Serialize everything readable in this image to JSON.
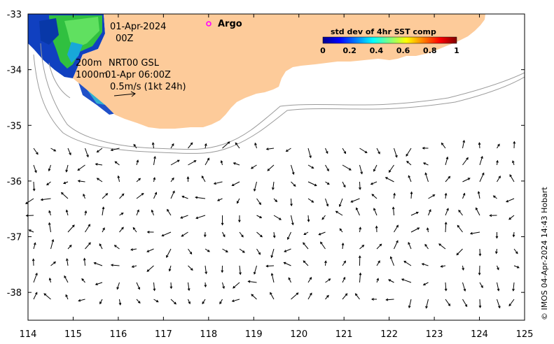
{
  "map": {
    "lon_range": [
      114,
      125
    ],
    "lat_range": [
      -38.5,
      -33
    ],
    "x_ticks": [
      114,
      115,
      116,
      117,
      118,
      119,
      120,
      121,
      122,
      123,
      124,
      125
    ],
    "y_ticks": [
      -33,
      -34,
      -35,
      -36,
      -37,
      -38
    ],
    "land_color": "#fdcb9a",
    "annotations": {
      "date": "01-Apr-2024",
      "hour": "00Z",
      "contour_200": "200m",
      "contour_1000": "1000m",
      "product": "NRT00 GSL",
      "product_time": "01-Apr 06:00Z",
      "scale_label": "0.5m/s (1kt 24h)"
    },
    "legend": {
      "argo_label": "Argo",
      "argo_color": "#ff00ff"
    },
    "colorbar": {
      "title": "std dev of 4hr SST comp",
      "ticks": [
        "0",
        "0.2",
        "0.4",
        "0.6",
        "0.8",
        "1"
      ]
    },
    "credit": "© IMOS 04-Apr-2024 14:43 Hobart"
  }
}
